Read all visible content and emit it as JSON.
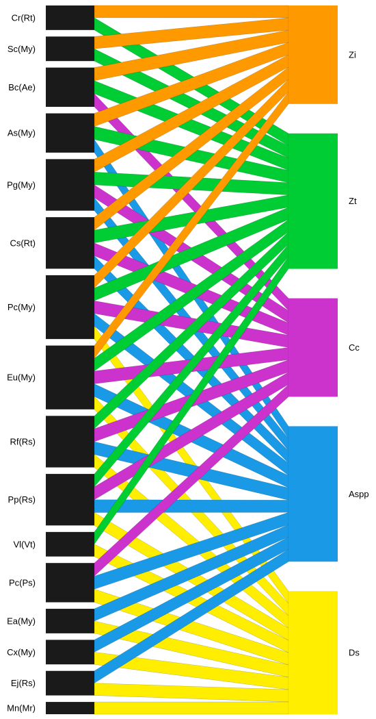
{
  "colors": {
    "background": "#ffffff",
    "left_node": "#1a1a1a",
    "Zi": "#ff9900",
    "Zt": "#00cc33",
    "Cc": "#cc33cc",
    "Aspp": "#1a99e6",
    "Ds": "#ffee00"
  },
  "chart_data": {
    "type": "sankey",
    "left_nodes": [
      {
        "label": "Cr(Rt)",
        "value": 1.0
      },
      {
        "label": "Sc(My)",
        "value": 1.0
      },
      {
        "label": "Bc(Ae)",
        "value": 1.6
      },
      {
        "label": "As(My)",
        "value": 1.6
      },
      {
        "label": "Pg(My)",
        "value": 2.1
      },
      {
        "label": "Cs(Rt)",
        "value": 2.1
      },
      {
        "label": "Pc(My)",
        "value": 2.6
      },
      {
        "label": "Eu(My)",
        "value": 2.6
      },
      {
        "label": "Rf(Rs)",
        "value": 2.1
      },
      {
        "label": "Pp(Rs)",
        "value": 2.1
      },
      {
        "label": "Vl(Vt)",
        "value": 1.0
      },
      {
        "label": "Pc(Ps)",
        "value": 1.6
      },
      {
        "label": "Ea(My)",
        "value": 1.0
      },
      {
        "label": "Cx(My)",
        "value": 1.0
      },
      {
        "label": "Ej(Rs)",
        "value": 1.0
      },
      {
        "label": "Mn(Mr)",
        "value": 0.5
      }
    ],
    "right_nodes": [
      {
        "label": "Zi",
        "color": "#ff9900"
      },
      {
        "label": "Zt",
        "color": "#00cc33"
      },
      {
        "label": "Cc",
        "color": "#cc33cc"
      },
      {
        "label": "Aspp",
        "color": "#1a99e6"
      },
      {
        "label": "Ds",
        "color": "#ffee00"
      }
    ],
    "links": [
      {
        "source": "Cr(Rt)",
        "target": "Zi",
        "value": 0.5
      },
      {
        "source": "Cr(Rt)",
        "target": "Zt",
        "value": 0.5
      },
      {
        "source": "Sc(My)",
        "target": "Zi",
        "value": 0.5
      },
      {
        "source": "Sc(My)",
        "target": "Zt",
        "value": 0.5
      },
      {
        "source": "Bc(Ae)",
        "target": "Zi",
        "value": 0.5
      },
      {
        "source": "Bc(Ae)",
        "target": "Zt",
        "value": 0.5
      },
      {
        "source": "Bc(Ae)",
        "target": "Cc",
        "value": 0.5
      },
      {
        "source": "As(My)",
        "target": "Zi",
        "value": 0.5
      },
      {
        "source": "As(My)",
        "target": "Zt",
        "value": 0.5
      },
      {
        "source": "As(My)",
        "target": "Aspp",
        "value": 0.5
      },
      {
        "source": "Pg(My)",
        "target": "Zi",
        "value": 0.5
      },
      {
        "source": "Pg(My)",
        "target": "Zt",
        "value": 0.5
      },
      {
        "source": "Pg(My)",
        "target": "Cc",
        "value": 0.5
      },
      {
        "source": "Pg(My)",
        "target": "Aspp",
        "value": 0.5
      },
      {
        "source": "Cs(Rt)",
        "target": "Zi",
        "value": 0.5
      },
      {
        "source": "Cs(Rt)",
        "target": "Zt",
        "value": 0.5
      },
      {
        "source": "Cs(Rt)",
        "target": "Cc",
        "value": 0.5
      },
      {
        "source": "Cs(Rt)",
        "target": "Aspp",
        "value": 0.5
      },
      {
        "source": "Pc(My)",
        "target": "Zi",
        "value": 0.5
      },
      {
        "source": "Pc(My)",
        "target": "Zt",
        "value": 0.5
      },
      {
        "source": "Pc(My)",
        "target": "Cc",
        "value": 0.5
      },
      {
        "source": "Pc(My)",
        "target": "Aspp",
        "value": 0.5
      },
      {
        "source": "Pc(My)",
        "target": "Ds",
        "value": 0.5
      },
      {
        "source": "Eu(My)",
        "target": "Zi",
        "value": 0.5
      },
      {
        "source": "Eu(My)",
        "target": "Zt",
        "value": 0.5
      },
      {
        "source": "Eu(My)",
        "target": "Cc",
        "value": 0.5
      },
      {
        "source": "Eu(My)",
        "target": "Aspp",
        "value": 0.5
      },
      {
        "source": "Eu(My)",
        "target": "Ds",
        "value": 0.5
      },
      {
        "source": "Rf(Rs)",
        "target": "Zt",
        "value": 0.5
      },
      {
        "source": "Rf(Rs)",
        "target": "Cc",
        "value": 0.5
      },
      {
        "source": "Rf(Rs)",
        "target": "Aspp",
        "value": 0.5
      },
      {
        "source": "Rf(Rs)",
        "target": "Ds",
        "value": 0.5
      },
      {
        "source": "Pp(Rs)",
        "target": "Zt",
        "value": 0.5
      },
      {
        "source": "Pp(Rs)",
        "target": "Cc",
        "value": 0.5
      },
      {
        "source": "Pp(Rs)",
        "target": "Aspp",
        "value": 0.5
      },
      {
        "source": "Pp(Rs)",
        "target": "Ds",
        "value": 0.5
      },
      {
        "source": "Vl(Vt)",
        "target": "Zt",
        "value": 0.5
      },
      {
        "source": "Vl(Vt)",
        "target": "Ds",
        "value": 0.5
      },
      {
        "source": "Pc(Ps)",
        "target": "Cc",
        "value": 0.5
      },
      {
        "source": "Pc(Ps)",
        "target": "Aspp",
        "value": 0.5
      },
      {
        "source": "Pc(Ps)",
        "target": "Ds",
        "value": 0.5
      },
      {
        "source": "Ea(My)",
        "target": "Aspp",
        "value": 0.5
      },
      {
        "source": "Ea(My)",
        "target": "Ds",
        "value": 0.5
      },
      {
        "source": "Cx(My)",
        "target": "Aspp",
        "value": 0.5
      },
      {
        "source": "Cx(My)",
        "target": "Ds",
        "value": 0.5
      },
      {
        "source": "Ej(Rs)",
        "target": "Aspp",
        "value": 0.5
      },
      {
        "source": "Ej(Rs)",
        "target": "Ds",
        "value": 0.5
      },
      {
        "source": "Mn(Mr)",
        "target": "Ds",
        "value": 0.5
      }
    ]
  }
}
